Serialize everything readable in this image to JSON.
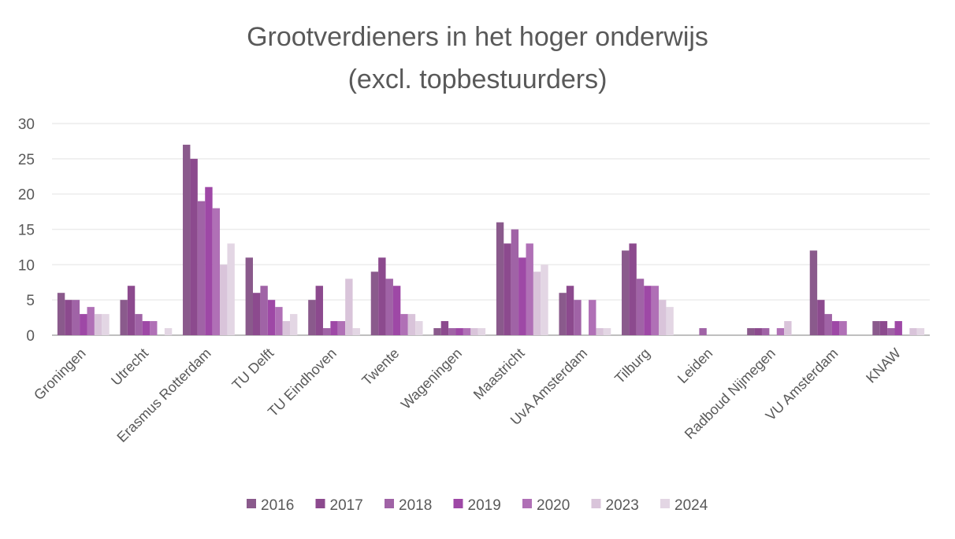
{
  "chart_data": {
    "type": "bar",
    "title": "Grootverdieners  in het hoger onderwijs",
    "subtitle": "(excl. topbestuurders)",
    "xlabel": "",
    "ylabel": "",
    "ylim": [
      0,
      30
    ],
    "yticks": [
      "0",
      "5",
      "10",
      "15",
      "20",
      "25",
      "30"
    ],
    "grid": true,
    "legend_position": "bottom",
    "categories": [
      "Groningen",
      "Utrecht",
      "Erasmus Rotterdam",
      "TU Delft",
      "TU Eindhoven",
      "Twente",
      "Wageningen",
      "Maastricht",
      "UvA Amsterdam",
      "Tilburg",
      "Leiden",
      "Radboud Nijmegen",
      "VU Amsterdam",
      "KNAW"
    ],
    "series": [
      {
        "name": "2016",
        "color": "#8a5a8c",
        "values": [
          6,
          5,
          27,
          11,
          5,
          9,
          1,
          16,
          6,
          12,
          0,
          1,
          12,
          2
        ]
      },
      {
        "name": "2017",
        "color": "#8c4a8e",
        "values": [
          5,
          7,
          25,
          6,
          7,
          11,
          2,
          13,
          7,
          13,
          0,
          1,
          5,
          2
        ]
      },
      {
        "name": "2018",
        "color": "#a063a6",
        "values": [
          5,
          3,
          19,
          7,
          1,
          8,
          1,
          15,
          5,
          8,
          1,
          1,
          3,
          1
        ]
      },
      {
        "name": "2019",
        "color": "#9e48a6",
        "values": [
          3,
          2,
          21,
          5,
          2,
          7,
          1,
          11,
          0,
          7,
          0,
          0,
          2,
          2
        ]
      },
      {
        "name": "2020",
        "color": "#b070b6",
        "values": [
          4,
          2,
          18,
          4,
          2,
          3,
          1,
          13,
          5,
          7,
          0,
          1,
          2,
          0
        ]
      },
      {
        "name": "2023",
        "color": "#d9c4da",
        "values": [
          3,
          0,
          10,
          2,
          8,
          3,
          1,
          9,
          1,
          5,
          0,
          2,
          0,
          1
        ]
      },
      {
        "name": "2024",
        "color": "#e3d6e4",
        "values": [
          3,
          1,
          13,
          3,
          1,
          2,
          1,
          10,
          1,
          4,
          0,
          0,
          0,
          1
        ]
      }
    ]
  }
}
